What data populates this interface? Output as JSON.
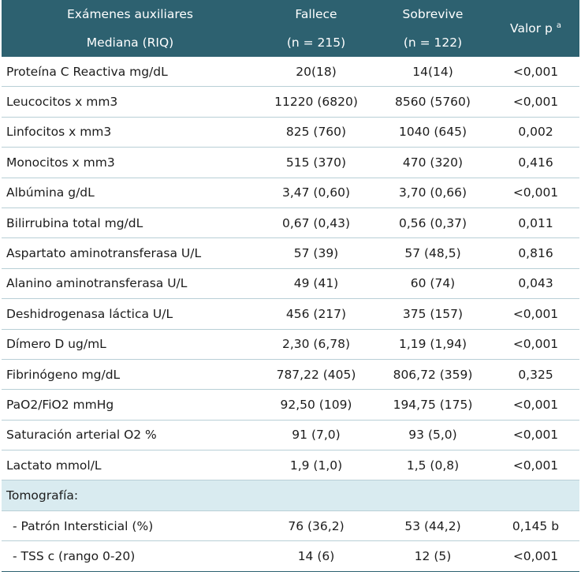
{
  "header": {
    "col1_line1": "Exámenes auxiliares",
    "col1_line2": "Mediana (RIQ)",
    "col2_line1": "Fallece",
    "col2_line2": "(n = 215)",
    "col3_line1": "Sobrevive",
    "col3_line2": "(n = 122)",
    "col4_label": "Valor p",
    "col4_sup": "a"
  },
  "rows": [
    {
      "label": "Proteína C Reactiva mg/dL",
      "fallece": "20(18)",
      "sobrevive": "14(14)",
      "p": "<0,001"
    },
    {
      "label": "Leucocitos x mm3",
      "fallece": "11220 (6820)",
      "sobrevive": "8560 (5760)",
      "p": "<0,001"
    },
    {
      "label": "Linfocitos x mm3",
      "fallece": "825 (760)",
      "sobrevive": "1040 (645)",
      "p": "0,002"
    },
    {
      "label": "Monocitos x mm3",
      "fallece": "515 (370)",
      "sobrevive": "470 (320)",
      "p": "0,416"
    },
    {
      "label": "Albúmina g/dL",
      "fallece": "3,47 (0,60)",
      "sobrevive": "3,70 (0,66)",
      "p": "<0,001"
    },
    {
      "label": "Bilirrubina total mg/dL",
      "fallece": "0,67 (0,43)",
      "sobrevive": "0,56 (0,37)",
      "p": "0,011"
    },
    {
      "label": "Aspartato aminotransferasa U/L",
      "fallece": "57 (39)",
      "sobrevive": "57 (48,5)",
      "p": "0,816"
    },
    {
      "label": "Alanino aminotransferasa U/L",
      "fallece": "49 (41)",
      "sobrevive": "60 (74)",
      "p": "0,043"
    },
    {
      "label": "Deshidrogenasa láctica U/L",
      "fallece": "456 (217)",
      "sobrevive": "375 (157)",
      "p": "<0,001"
    },
    {
      "label": "Dímero D ug/mL",
      "fallece": "2,30 (6,78)",
      "sobrevive": "1,19 (1,94)",
      "p": "<0,001"
    },
    {
      "label": "Fibrinógeno mg/dL",
      "fallece": "787,22 (405)",
      "sobrevive": "806,72 (359)",
      "p": "0,325"
    },
    {
      "label": "PaO2/FiO2 mmHg",
      "fallece": "92,50 (109)",
      "sobrevive": "194,75 (175)",
      "p": "<0,001"
    },
    {
      "label": "Saturación arterial O2 %",
      "fallece": "91 (7,0)",
      "sobrevive": "93 (5,0)",
      "p": "<0,001"
    },
    {
      "label": "Lactato mmol/L",
      "fallece": "1,9 (1,0)",
      "sobrevive": "1,5 (0,8)",
      "p": "<0,001"
    }
  ],
  "section": {
    "label": "Tomografía:"
  },
  "subrows": [
    {
      "label": "- Patrón Intersticial (%)",
      "fallece": "76 (36,2)",
      "sobrevive": "53 (44,2)",
      "p": "0,145 b"
    },
    {
      "label": "- TSS c (rango 0-20)",
      "fallece": "14 (6)",
      "sobrevive": "12 (5)",
      "p": "<0,001"
    }
  ],
  "colors": {
    "header_bg": "#2d6170",
    "section_bg": "#d9ebf0",
    "row_border": "#b8cfd6"
  }
}
